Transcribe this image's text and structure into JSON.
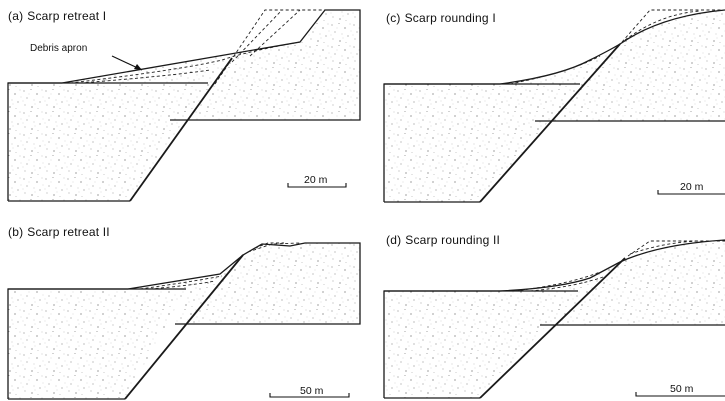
{
  "panels": [
    {
      "id": "a",
      "letter": "(a)",
      "title": "Scarp retreat I",
      "scale": "20 m",
      "annotation": "Debris apron"
    },
    {
      "id": "b",
      "letter": "(b)",
      "title": "Scarp retreat II",
      "scale": "50 m"
    },
    {
      "id": "c",
      "letter": "(c)",
      "title": "Scarp rounding I",
      "scale": "20 m"
    },
    {
      "id": "d",
      "letter": "(d)",
      "title": "Scarp rounding II",
      "scale": "50 m"
    }
  ],
  "colors": {
    "ink": "#1a1a1a",
    "speckle": "#6a6a6a",
    "background": "#ffffff"
  }
}
